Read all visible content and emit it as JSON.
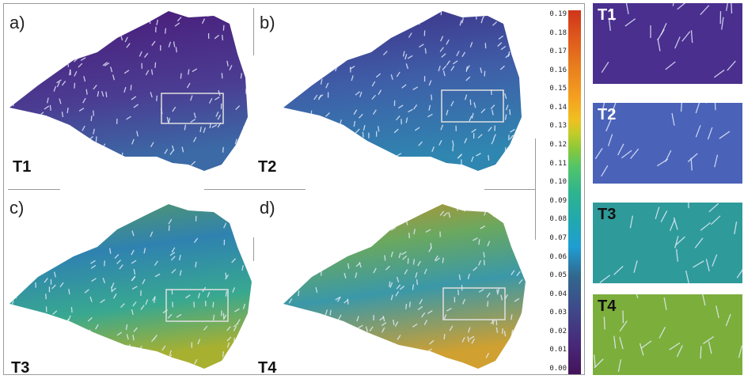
{
  "panels": [
    {
      "letter": "a)",
      "label": "T1"
    },
    {
      "letter": "b)",
      "label": "T2"
    },
    {
      "letter": "c)",
      "label": "T3"
    },
    {
      "letter": "d)",
      "label": "T4"
    }
  ],
  "colorbar": {
    "ticks": [
      "0.19",
      "0.18",
      "0.17",
      "0.16",
      "0.15",
      "0.14",
      "0.13",
      "0.12",
      "0.11",
      "0.10",
      "0.09",
      "0.08",
      "0.07",
      "0.06",
      "0.05",
      "0.04",
      "0.03",
      "0.02",
      "0.01",
      "0.00"
    ]
  },
  "zooms": [
    {
      "label": "T1",
      "color": "#4a2f8e"
    },
    {
      "label": "T2",
      "color": "#4a62b8"
    },
    {
      "label": "T3",
      "color": "#2f9a9a"
    },
    {
      "label": "T4",
      "color": "#7cae3c"
    }
  ],
  "colors": {
    "T1": "#4b2a86",
    "T2": "#3f5aa8",
    "T3": "#2f8ea8",
    "T4": "#5aa86a"
  }
}
